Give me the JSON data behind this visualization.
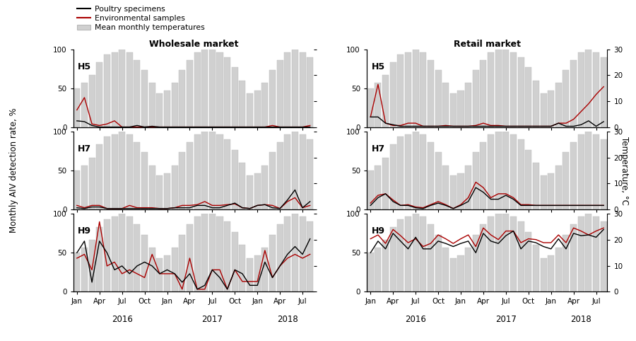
{
  "months": 32,
  "temp": [
    15,
    17,
    20,
    25,
    28,
    29,
    30,
    29,
    26,
    22,
    17,
    13,
    14,
    17,
    22,
    26,
    29,
    30,
    30,
    29,
    27,
    23,
    18,
    13,
    14,
    17,
    22,
    26,
    29,
    30,
    29,
    27
  ],
  "wholesale_H5_poultry": [
    8,
    7,
    2,
    0,
    0,
    0,
    0,
    0,
    2,
    0,
    1,
    0,
    0,
    0,
    0,
    0,
    0,
    0,
    0,
    0,
    0,
    0,
    0,
    0,
    0,
    0,
    0,
    0,
    0,
    0,
    0,
    0
  ],
  "wholesale_H5_environ": [
    22,
    38,
    4,
    2,
    4,
    8,
    0,
    0,
    0,
    0,
    0,
    0,
    0,
    0,
    0,
    0,
    0,
    0,
    0,
    0,
    0,
    0,
    0,
    0,
    0,
    0,
    2,
    0,
    0,
    0,
    0,
    2
  ],
  "wholesale_H7_poultry": [
    2,
    1,
    3,
    3,
    1,
    1,
    1,
    1,
    1,
    1,
    1,
    1,
    1,
    2,
    2,
    2,
    5,
    5,
    2,
    2,
    5,
    8,
    2,
    1,
    5,
    6,
    2,
    1,
    12,
    25,
    2,
    10
  ],
  "wholesale_H7_environ": [
    5,
    2,
    5,
    5,
    1,
    1,
    1,
    5,
    2,
    2,
    2,
    1,
    1,
    2,
    5,
    5,
    6,
    10,
    5,
    5,
    6,
    7,
    2,
    1,
    5,
    6,
    5,
    1,
    10,
    15,
    2,
    5
  ],
  "wholesale_H9_poultry": [
    50,
    65,
    12,
    65,
    50,
    28,
    33,
    23,
    33,
    38,
    33,
    23,
    28,
    23,
    12,
    23,
    3,
    8,
    28,
    18,
    3,
    28,
    23,
    8,
    8,
    38,
    18,
    33,
    48,
    58,
    48,
    68
  ],
  "wholesale_H9_environ": [
    43,
    48,
    28,
    90,
    33,
    38,
    23,
    28,
    23,
    18,
    48,
    23,
    23,
    23,
    3,
    43,
    3,
    3,
    28,
    28,
    3,
    28,
    13,
    13,
    13,
    53,
    18,
    33,
    43,
    48,
    43,
    48
  ],
  "retail_H5_poultry": [
    13,
    13,
    5,
    3,
    1,
    1,
    1,
    1,
    1,
    1,
    1,
    1,
    1,
    1,
    1,
    1,
    1,
    1,
    1,
    1,
    1,
    1,
    1,
    1,
    1,
    5,
    1,
    1,
    3,
    8,
    1,
    7
  ],
  "retail_H5_environ": [
    13,
    55,
    5,
    2,
    2,
    5,
    5,
    1,
    1,
    1,
    2,
    1,
    1,
    1,
    2,
    5,
    2,
    2,
    1,
    1,
    1,
    1,
    1,
    1,
    1,
    5,
    5,
    10,
    20,
    30,
    42,
    52
  ],
  "retail_H7_poultry": [
    5,
    15,
    20,
    10,
    5,
    5,
    2,
    1,
    5,
    8,
    5,
    1,
    5,
    10,
    28,
    22,
    13,
    13,
    18,
    13,
    5,
    5,
    5,
    5,
    5,
    5,
    5,
    5,
    5,
    5,
    5,
    5
  ],
  "retail_H7_environ": [
    8,
    18,
    20,
    12,
    5,
    6,
    3,
    2,
    6,
    10,
    6,
    1,
    6,
    15,
    35,
    28,
    15,
    20,
    20,
    15,
    6,
    6,
    5,
    5,
    5,
    5,
    5,
    5,
    5,
    5,
    5,
    5
  ],
  "retail_H9_poultry": [
    50,
    65,
    55,
    75,
    65,
    55,
    70,
    55,
    55,
    65,
    62,
    58,
    62,
    65,
    50,
    75,
    65,
    62,
    72,
    78,
    55,
    65,
    63,
    58,
    55,
    68,
    55,
    75,
    72,
    73,
    70,
    80
  ],
  "retail_H9_environ": [
    68,
    73,
    62,
    80,
    72,
    63,
    68,
    58,
    62,
    73,
    68,
    62,
    68,
    73,
    58,
    82,
    73,
    67,
    78,
    78,
    63,
    68,
    67,
    63,
    63,
    73,
    63,
    82,
    78,
    73,
    78,
    82
  ],
  "tick_labels": [
    "Jan",
    "Apr",
    "Jul",
    "Oct",
    "Jan",
    "Apr",
    "Jul",
    "Oct",
    "Jan",
    "Apr",
    "Jul"
  ],
  "tick_positions": [
    0,
    3,
    6,
    9,
    12,
    15,
    18,
    21,
    24,
    27,
    30
  ],
  "year_labels": [
    "2016",
    "2017",
    "2018"
  ],
  "bar_color": "#d0d0d0",
  "bar_edgecolor": "#b8b8b8",
  "poultry_color": "#000000",
  "environ_color": "#aa0000",
  "title_wholesale": "Wholesale market",
  "title_retail": "Retail market",
  "ylabel_left": "Monthly AIV detection rate, %",
  "ylabel_right": "Temperature, °C",
  "subtitle_labels": [
    "H5",
    "H7",
    "H9"
  ]
}
